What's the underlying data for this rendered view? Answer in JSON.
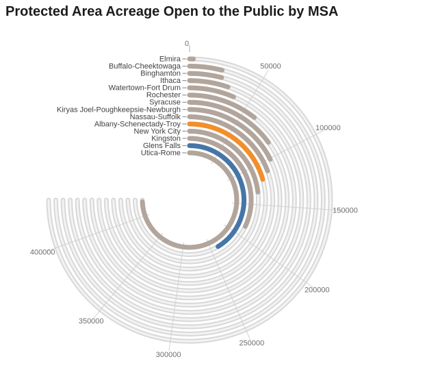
{
  "title": "Protected Area Acreage Open to the Public by MSA",
  "chart_data": {
    "type": "radial-bar",
    "title": "Protected Area Acreage Open to the Public by MSA",
    "categories": [
      "Elmira",
      "Buffalo-Cheektowaga",
      "Binghamton",
      "Ithaca",
      "Watertown-Fort Drum",
      "Rochester",
      "Syracuse",
      "Kiryas Joel-Poughkeepsie-Newburgh",
      "Nassau-Suffolk",
      "Albany-Schenectady-Troy",
      "New York City",
      "Kingston",
      "Glens Falls",
      "Utica-Rome"
    ],
    "values": [
      2500,
      22500,
      23500,
      30000,
      37000,
      61000,
      86000,
      101000,
      111000,
      118500,
      133000,
      184000,
      237000,
      428000
    ],
    "bar_colors": [
      "#b2a59c",
      "#b2a59c",
      "#b2a59c",
      "#b2a59c",
      "#b2a59c",
      "#b2a59c",
      "#b2a59c",
      "#b2a59c",
      "#b2a59c",
      "#f28e2b",
      "#b2a59c",
      "#b2a59c",
      "#4676a8",
      "#b2a59c"
    ],
    "highlights": {
      "Albany-Schenectady-Troy": "#f28e2b",
      "Glens Falls": "#4676a8"
    },
    "axis": {
      "tick_values": [
        0,
        50000,
        100000,
        150000,
        200000,
        250000,
        300000,
        350000,
        400000
      ],
      "tick_labels": [
        "0",
        "50000",
        "100000",
        "150000",
        "200000",
        "250000",
        "300000",
        "350000",
        "400000"
      ],
      "min": 0,
      "max": 400000
    },
    "layout_hints": {
      "direction": "clockwise",
      "start_angle_deg": 0,
      "deg_per_50000": 31.3,
      "track_end_deg": 270,
      "grid": true,
      "legend": "none"
    }
  },
  "colors": {
    "bar_default": "#b2a59c",
    "bar_orange": "#f28e2b",
    "bar_blue": "#4676a8",
    "track": "#d8d8d8",
    "track_core": "#f3f3f3",
    "gridline": "#d2d2d2",
    "leader_dash": "#949494",
    "tick_text": "#6e6e6e",
    "category_text": "#404040",
    "title_text": "#1c1c1c",
    "background": "#ffffff"
  }
}
